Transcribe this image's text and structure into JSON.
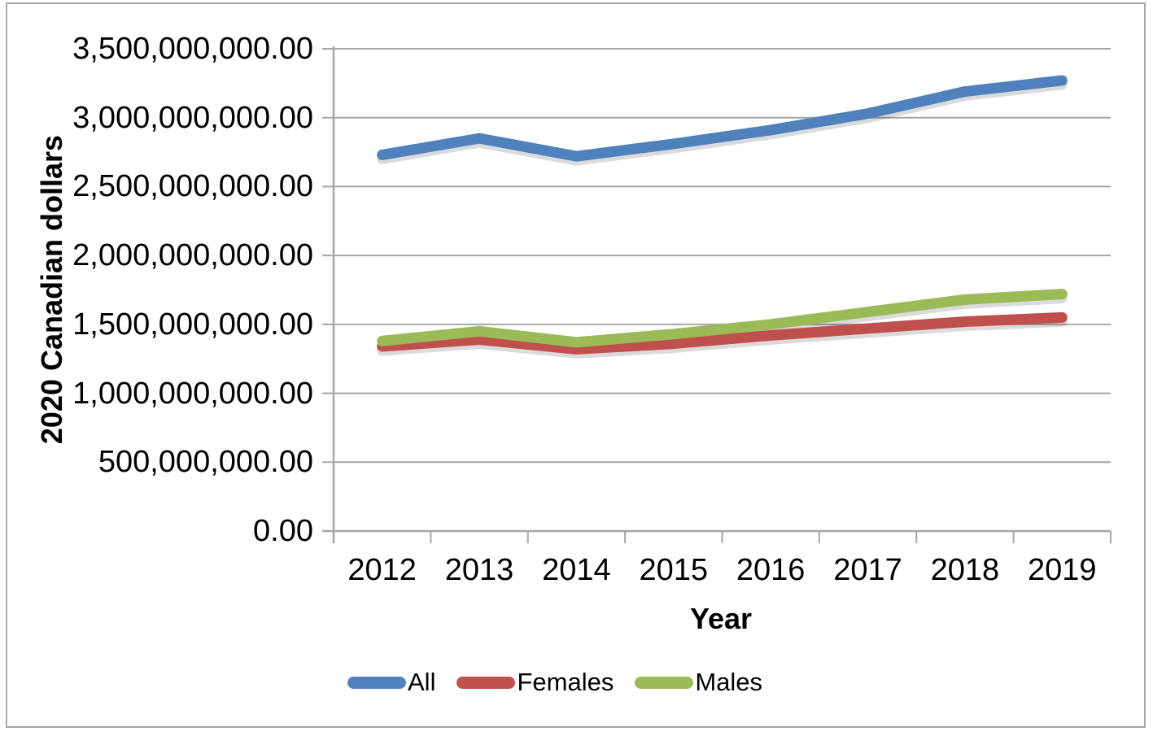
{
  "chart_data": {
    "type": "line",
    "title": "",
    "categories": [
      "2012",
      "2013",
      "2014",
      "2015",
      "2016",
      "2017",
      "2018",
      "2019"
    ],
    "series": [
      {
        "name": "All",
        "color": "#4F81BD",
        "values": [
          2730000000,
          2850000000,
          2720000000,
          2810000000,
          2910000000,
          3030000000,
          3190000000,
          3270000000
        ]
      },
      {
        "name": "Females",
        "color": "#C0504D",
        "values": [
          1340000000,
          1390000000,
          1320000000,
          1360000000,
          1420000000,
          1470000000,
          1520000000,
          1550000000
        ]
      },
      {
        "name": "Males",
        "color": "#9BBB59",
        "values": [
          1380000000,
          1450000000,
          1370000000,
          1430000000,
          1500000000,
          1590000000,
          1680000000,
          1720000000
        ]
      }
    ],
    "xlabel": "Year",
    "ylabel": "2020 Canadian dollars",
    "ylim": [
      0,
      3500000000
    ],
    "y_tick_step": 500000000,
    "y_tick_labels": [
      "0.00",
      "500,000,000.00",
      "1,000,000,000.00",
      "1,500,000,000.00",
      "2,000,000,000.00",
      "2,500,000,000.00",
      "3,000,000,000.00",
      "3,500,000,000.00"
    ],
    "grid": true,
    "legend_position": "bottom",
    "legend": [
      "All",
      "Females",
      "Males"
    ]
  },
  "styles": {
    "grid_color": "#A6A6A6",
    "axis_color": "#A6A6A6",
    "border_color": "#A6A6A6",
    "text_color": "#000000",
    "background": "#FFFFFF",
    "shadow_color": "rgba(0,0,0,0.14)"
  }
}
